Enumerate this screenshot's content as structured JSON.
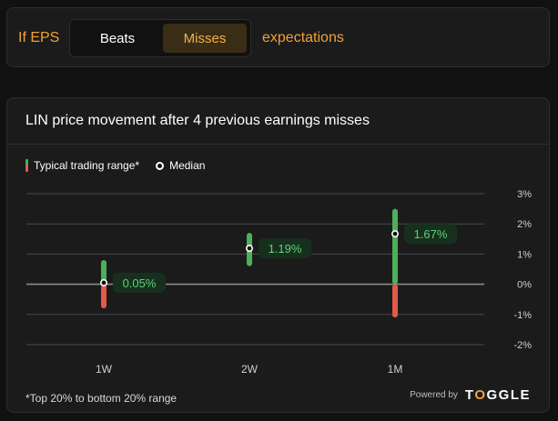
{
  "filter": {
    "prefix": "If EPS",
    "options": [
      "Beats",
      "Misses"
    ],
    "selected": "Misses",
    "suffix": "expectations"
  },
  "card": {
    "title": "LIN price movement after 4 previous earnings misses",
    "legend": {
      "range_label": "Typical trading range*",
      "median_label": "Median"
    },
    "footnote": "*Top 20% to bottom 20% range",
    "powered_by": "Powered by",
    "brand": "TOGGLE"
  },
  "colors": {
    "accent": "#f0a23a",
    "up": "#4caf5a",
    "down": "#e4594a",
    "label_text": "#5fd27a",
    "label_bg": "#17301d"
  },
  "chart_data": {
    "type": "range",
    "categories": [
      "1W",
      "2W",
      "1M"
    ],
    "series": [
      {
        "name": "Typical trading range*",
        "low": [
          -0.8,
          0.6,
          -1.1
        ],
        "high": [
          0.8,
          1.7,
          2.5
        ]
      },
      {
        "name": "Median",
        "values": [
          0.05,
          1.19,
          1.67
        ],
        "labels": [
          "0.05%",
          "1.19%",
          "1.67%"
        ]
      }
    ],
    "y_ticks": [
      "3%",
      "2%",
      "1%",
      "0%",
      "-1%",
      "-2%"
    ],
    "ylim": [
      -2,
      3
    ],
    "grid": true
  }
}
